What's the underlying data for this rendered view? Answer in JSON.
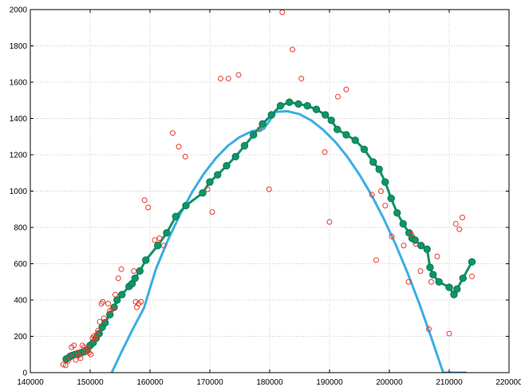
{
  "chart_data": {
    "type": "scatter",
    "title": "",
    "xlabel": "",
    "ylabel": "",
    "xlim": [
      140000,
      220000
    ],
    "ylim": [
      0,
      2000
    ],
    "grid": true,
    "legend": "none",
    "xticks": [
      140000,
      150000,
      160000,
      170000,
      180000,
      190000,
      200000,
      210000,
      220000
    ],
    "yticks": [
      0,
      200,
      400,
      600,
      800,
      1000,
      1200,
      1400,
      1600,
      1800,
      2000
    ],
    "colors": {
      "points": "#e8392a",
      "line": "#0f9467",
      "curve": "#3aaee4",
      "grid": "#c8c8c8"
    },
    "series": [
      {
        "kind": "points",
        "x": [
          145500,
          145900,
          146300,
          146600,
          146900,
          147300,
          147600,
          147900,
          148100,
          148400,
          148700,
          149000,
          149300,
          149600,
          149800,
          150100,
          150400,
          150600,
          150900,
          151100,
          151300,
          151600,
          151900,
          152100,
          152300,
          153000,
          153300,
          153700,
          154200,
          154700,
          155200,
          157300,
          157600,
          157800,
          158100,
          158500,
          159100,
          159700,
          160800,
          161600,
          162300,
          163800,
          164800,
          165900,
          169600,
          170400,
          171800,
          173100,
          174800,
          178300,
          179900,
          182100,
          183800,
          185300,
          189200,
          190000,
          191400,
          192800,
          197100,
          197800,
          198600,
          199300,
          200400,
          202400,
          203200,
          203700,
          204400,
          205200,
          206600,
          207000,
          208000,
          210000,
          211100,
          211700,
          212200,
          213800
        ],
        "y": [
          45,
          40,
          65,
          95,
          140,
          150,
          70,
          110,
          95,
          80,
          150,
          140,
          120,
          135,
          110,
          100,
          190,
          200,
          190,
          210,
          230,
          280,
          380,
          390,
          300,
          380,
          340,
          350,
          430,
          520,
          570,
          560,
          390,
          360,
          380,
          390,
          950,
          910,
          730,
          740,
          700,
          1320,
          1245,
          1190,
          1010,
          885,
          1620,
          1620,
          1640,
          1340,
          1010,
          1985,
          1780,
          1620,
          1215,
          830,
          1520,
          1560,
          980,
          620,
          1000,
          920,
          750,
          700,
          500,
          760,
          710,
          560,
          240,
          500,
          640,
          215,
          820,
          790,
          855,
          530
        ]
      },
      {
        "kind": "line",
        "x": [
          146000,
          146500,
          147000,
          147500,
          148000,
          148500,
          149000,
          149500,
          150000,
          150500,
          151000,
          151500,
          152000,
          152500,
          153300,
          154000,
          154500,
          155300,
          156500,
          157000,
          157500,
          158300,
          159300,
          161300,
          162800,
          164300,
          166000,
          168800,
          170000,
          171300,
          172800,
          174300,
          175800,
          177300,
          178800,
          180300,
          181800,
          183300,
          184800,
          186300,
          187800,
          189300,
          190300,
          191300,
          192800,
          194300,
          195800,
          197300,
          198300,
          199300,
          200300,
          201300,
          202300,
          203300,
          203800,
          204300,
          205300,
          206300,
          206800,
          207300,
          208300,
          210000,
          210800,
          211300,
          212300,
          213800
        ],
        "y": [
          75,
          85,
          95,
          100,
          105,
          110,
          115,
          125,
          150,
          165,
          190,
          215,
          250,
          275,
          320,
          360,
          400,
          430,
          475,
          490,
          520,
          560,
          620,
          700,
          770,
          860,
          920,
          990,
          1050,
          1090,
          1140,
          1190,
          1250,
          1310,
          1370,
          1420,
          1470,
          1490,
          1480,
          1470,
          1450,
          1420,
          1390,
          1340,
          1310,
          1280,
          1230,
          1160,
          1120,
          1050,
          960,
          880,
          820,
          770,
          740,
          730,
          700,
          680,
          580,
          540,
          500,
          470,
          430,
          460,
          520,
          610
        ]
      },
      {
        "kind": "curve",
        "x": [
          153600,
          155000,
          157000,
          159000,
          161000,
          163000,
          165000,
          167000,
          169000,
          171000,
          173000,
          175000,
          177000,
          179000,
          181000,
          183000,
          185000,
          187000,
          189000,
          191000,
          193000,
          195000,
          197000,
          199000,
          201000,
          203000,
          205000,
          207000,
          209000,
          211000,
          212900
        ],
        "y": [
          0,
          98,
          232,
          357,
          572,
          730,
          870,
          992,
          1096,
          1181,
          1249,
          1298,
          1329,
          1342,
          1437,
          1440,
          1424,
          1388,
          1336,
          1270,
          1188,
          1091,
          979,
          852,
          710,
          553,
          381,
          194,
          0,
          0,
          0
        ]
      }
    ]
  }
}
